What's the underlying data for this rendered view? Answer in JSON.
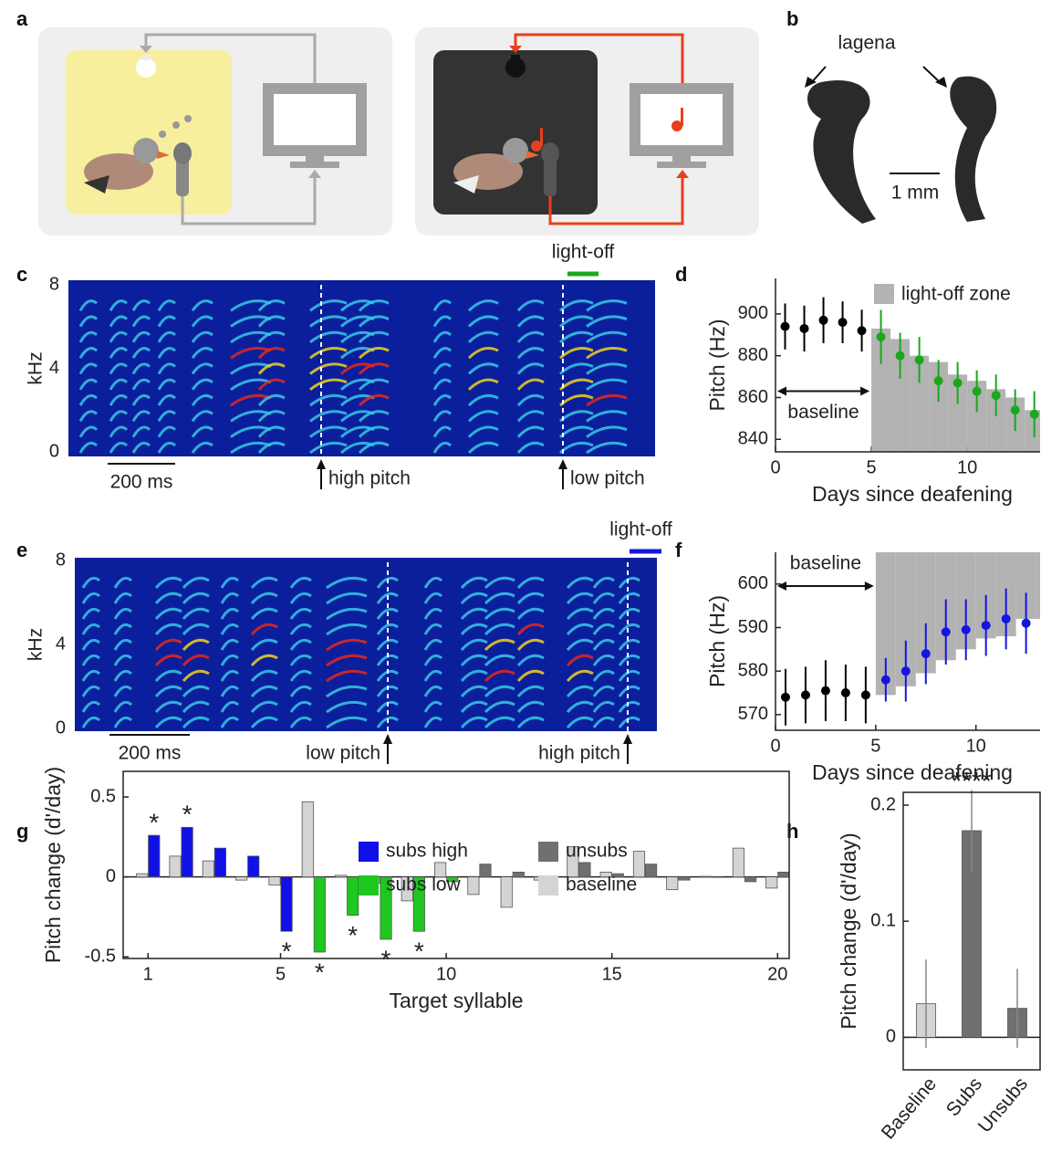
{
  "panel_labels": [
    "a",
    "b",
    "c",
    "d",
    "e",
    "f",
    "g",
    "h"
  ],
  "panel_b": {
    "label": "lagena",
    "scale": "1 mm"
  },
  "spectrograms": [
    {
      "ylabel": "kHz",
      "yticks": [
        0,
        4,
        8
      ],
      "ylim": [
        0,
        8
      ],
      "scalebar": "200 ms",
      "light_off": "light-off",
      "light_off_color": "#1aa81a",
      "markers": [
        "high pitch",
        "low pitch"
      ]
    },
    {
      "ylabel": "kHz",
      "yticks": [
        0,
        4,
        8
      ],
      "ylim": [
        0,
        8
      ],
      "scalebar": "200 ms",
      "light_off": "light-off",
      "light_off_color": "#1515e0",
      "markers": [
        "low pitch",
        "high pitch"
      ]
    }
  ],
  "chart_data": [
    {
      "type": "errorbar",
      "ylabel": "Pitch (Hz)",
      "xlabel": "Days since deafening",
      "xlim": [
        0,
        13.8
      ],
      "ylim": [
        834,
        917
      ],
      "xticks": [
        0,
        5,
        10
      ],
      "yticks": [
        840,
        860,
        880,
        900
      ],
      "zone": {
        "name": "light-off zone",
        "color": "#b3b3b3",
        "side": "below",
        "edges": [
          5,
          6,
          7,
          8,
          9,
          10,
          11,
          12,
          13,
          14
        ],
        "values": [
          893,
          888,
          880,
          877,
          871,
          868,
          864,
          860,
          854
        ]
      },
      "annotation": "baseline",
      "series": [
        {
          "color": "#000000",
          "x": [
            0.5,
            1.5,
            2.5,
            3.5,
            4.5
          ],
          "values": [
            894,
            893,
            897,
            896,
            892
          ],
          "errors": [
            11,
            11,
            11,
            10,
            10
          ]
        },
        {
          "color": "#1aa81a",
          "x": [
            5.5,
            6.5,
            7.5,
            8.5,
            9.5,
            10.5,
            11.5,
            12.5,
            13.5
          ],
          "values": [
            889,
            880,
            878,
            868,
            867,
            863,
            861,
            854,
            852
          ],
          "errors": [
            13,
            11,
            11,
            10,
            10,
            10,
            10,
            10,
            11
          ]
        }
      ]
    },
    {
      "type": "errorbar",
      "ylabel": "Pitch (Hz)",
      "xlabel": "Days since deafening",
      "xlim": [
        0,
        13.2
      ],
      "ylim": [
        566.4,
        607.3
      ],
      "xticks": [
        0,
        5,
        10
      ],
      "yticks": [
        570,
        580,
        590,
        600
      ],
      "zone": {
        "color": "#b3b3b3",
        "side": "above",
        "edges": [
          5,
          6,
          7,
          8,
          9,
          10,
          11,
          12,
          13,
          14
        ],
        "values": [
          574.5,
          576.5,
          579.5,
          582.5,
          585,
          587.5,
          588,
          592,
          592
        ]
      },
      "annotation": "baseline",
      "series": [
        {
          "color": "#000000",
          "x": [
            0.5,
            1.5,
            2.5,
            3.5,
            4.5
          ],
          "values": [
            574,
            574.5,
            575.5,
            575,
            574.5
          ],
          "errors": [
            6.5,
            6.5,
            7,
            6.5,
            6.5
          ]
        },
        {
          "color": "#1515e0",
          "x": [
            5.5,
            6.5,
            7.5,
            8.5,
            9.5,
            10.5,
            11.5,
            12.5
          ],
          "values": [
            578,
            580,
            584,
            589,
            589.5,
            590.5,
            592,
            591
          ],
          "errors": [
            5,
            7,
            7,
            7.5,
            7,
            7,
            7,
            7
          ]
        }
      ]
    },
    {
      "type": "bar",
      "ylabel": "Pitch change (d'/day)",
      "xlabel": "Target syllable",
      "xlim": [
        0.25,
        20.35
      ],
      "ylim": [
        -0.51,
        0.66
      ],
      "xticks": [
        1,
        5,
        10,
        15,
        20
      ],
      "yticks": [
        -0.5,
        0,
        0.5
      ],
      "series": [
        {
          "name": "subs high",
          "color": "#1010e8",
          "x": [
            1,
            2,
            3,
            4,
            5
          ],
          "values": [
            0.26,
            0.31,
            0.18,
            0.13,
            -0.34
          ]
        },
        {
          "name": "subs low",
          "color": "#1ec81e",
          "x": [
            6,
            7,
            8,
            9,
            10
          ],
          "values": [
            -0.47,
            -0.24,
            -0.39,
            -0.34,
            -0.03
          ]
        },
        {
          "name": "unsubs",
          "color": "#707070",
          "x": [
            11,
            12,
            13,
            14,
            15,
            16,
            17,
            18,
            19,
            20
          ],
          "values": [
            0.08,
            0.03,
            -0.02,
            0.09,
            0.02,
            0.08,
            -0.02,
            -0.003,
            -0.03,
            0.03
          ]
        },
        {
          "name": "baseline",
          "color": "#d4d4d4",
          "x": [
            1,
            2,
            3,
            4,
            5,
            6,
            7,
            8,
            9,
            10,
            11,
            12,
            13,
            14,
            15,
            16,
            17,
            18,
            19,
            20
          ],
          "values": [
            0.02,
            0.13,
            0.1,
            -0.02,
            -0.05,
            0.47,
            0.01,
            -0.04,
            -0.15,
            0.09,
            -0.11,
            -0.19,
            -0.02,
            0.19,
            0.03,
            0.16,
            -0.08,
            0.003,
            0.18,
            -0.07
          ]
        }
      ],
      "stars": {
        "text": "*",
        "x": [
          1,
          2,
          5,
          6,
          7,
          8,
          9
        ]
      }
    },
    {
      "type": "catbar",
      "ylabel": "Pitch change (d'/day)",
      "categories": [
        "Baseline",
        "Subs",
        "Unsubs"
      ],
      "values": [
        0.029,
        0.178,
        0.025
      ],
      "errors": [
        0.038,
        0.035,
        0.034
      ],
      "colors": [
        "#d4d4d4",
        "#707070",
        "#707070"
      ],
      "ylim": [
        -0.028,
        0.211
      ],
      "yticks": [
        0,
        0.1,
        0.2
      ],
      "annotations": [
        {
          "text": "****",
          "category": "Subs"
        }
      ]
    }
  ]
}
